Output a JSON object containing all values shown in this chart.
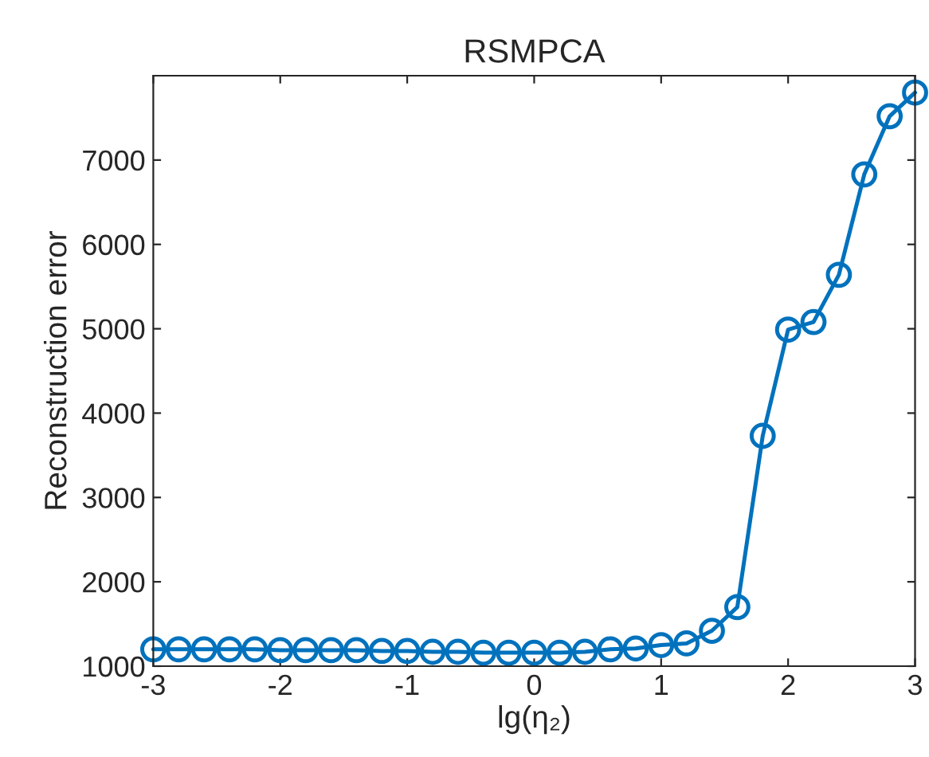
{
  "chart_data": {
    "type": "line",
    "title": "RSMPCA",
    "xlabel": "lg(η₂)",
    "ylabel": "Reconstruction error",
    "x": [
      -3,
      -2.8,
      -2.6,
      -2.4,
      -2.2,
      -2,
      -1.8,
      -1.6,
      -1.4,
      -1.2,
      -1,
      -0.8,
      -0.6,
      -0.4,
      -0.2,
      0,
      0.2,
      0.4,
      0.6,
      0.8,
      1,
      1.2,
      1.4,
      1.6,
      1.8,
      2,
      2.2,
      2.4,
      2.6,
      2.8,
      3
    ],
    "series": [
      {
        "color": "#0072bd",
        "values": [
          1200,
          1200,
          1200,
          1200,
          1200,
          1190,
          1190,
          1190,
          1190,
          1180,
          1180,
          1170,
          1170,
          1160,
          1160,
          1160,
          1160,
          1170,
          1200,
          1210,
          1250,
          1270,
          1420,
          1700,
          3730,
          4990,
          5080,
          5640,
          6830,
          7520,
          7800
        ]
      }
    ],
    "xlim": [
      -3,
      3
    ],
    "ylim": [
      1000,
      8000
    ],
    "xticks": [
      -3,
      -2,
      -1,
      0,
      1,
      2,
      3
    ],
    "yticks": [
      1000,
      2000,
      3000,
      4000,
      5000,
      6000,
      7000
    ],
    "marker": "circle",
    "line_style": "solid",
    "grid": false
  }
}
